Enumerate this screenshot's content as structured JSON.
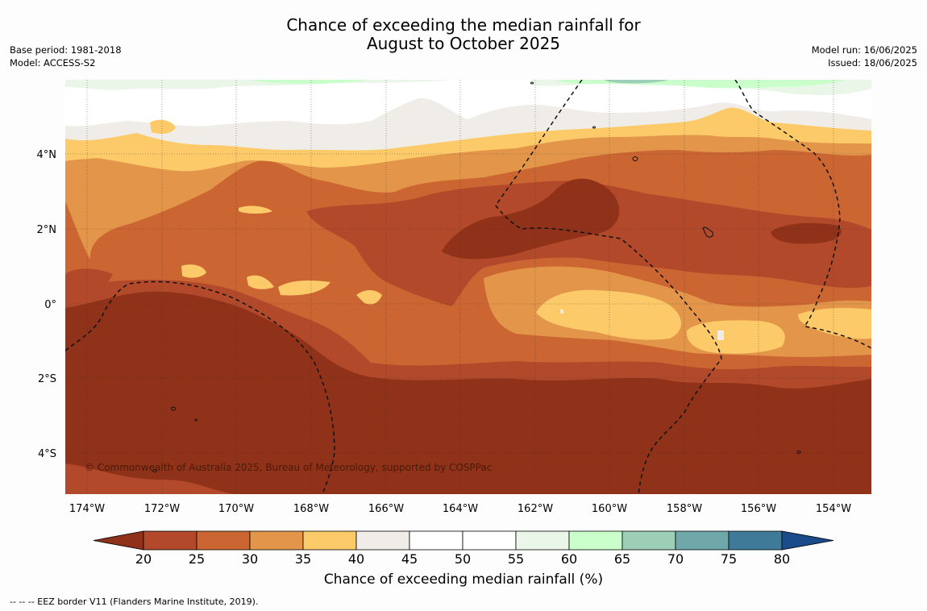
{
  "title_line1": "Chance of exceeding the median rainfall for",
  "title_line2": "August to October 2025",
  "meta_left": [
    "Base period: 1981-2018",
    "Model: ACCESS-S2"
  ],
  "meta_right": [
    "Model run: 16/06/2025",
    "Issued: 18/06/2025"
  ],
  "copyright": "© Commonwealth of Australia 2025, Bureau of Meteorology, supported by COSPPac",
  "lat_labels": [
    "4°N",
    "2°N",
    "0°",
    "2°S",
    "4°S"
  ],
  "lon_labels": [
    "174°W",
    "172°W",
    "170°W",
    "168°W",
    "166°W",
    "164°W",
    "162°W",
    "160°W",
    "158°W",
    "156°W",
    "154°W"
  ],
  "colorbar": {
    "label": "Chance of exceeding median rainfall (%)",
    "ticks": [
      "20",
      "25",
      "30",
      "35",
      "40",
      "45",
      "50",
      "55",
      "60",
      "65",
      "70",
      "75",
      "80"
    ],
    "colors": [
      "#8f3219",
      "#b1492a",
      "#cb6633",
      "#e3954a",
      "#fcca68",
      "#f0ede8",
      "#ffffff",
      "#ffffff",
      "#eaf6e8",
      "#caffcc",
      "#9dcfb6",
      "#70a7a9",
      "#3f7a99",
      "#1a4b8a"
    ]
  },
  "eez_note": "--  --  -- EEZ border V11 (Flanders Marine Institute, 2019)."
}
